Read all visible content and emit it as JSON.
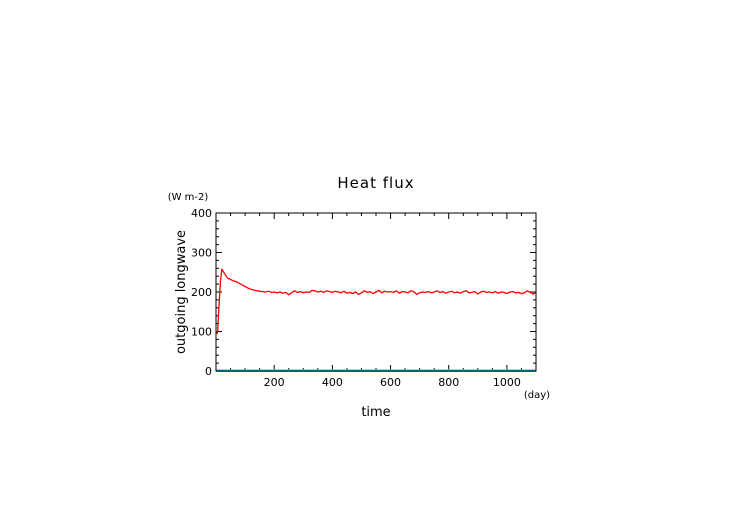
{
  "chart_data": {
    "type": "line",
    "title": "Heat flux",
    "xlabel": "time",
    "ylabel": "outgoing longwave",
    "xunit": "(day)",
    "yunit": "(W m-2)",
    "xlim": [
      0,
      1100
    ],
    "ylim": [
      0,
      400
    ],
    "xticks": [
      200,
      400,
      600,
      800,
      1000
    ],
    "yticks": [
      0,
      100,
      200,
      300,
      400
    ],
    "grid": false,
    "colors": {
      "main": "#ff0000",
      "baseline_a": "#00c8ff",
      "baseline_b": "#7fd03c",
      "baseline_c": "#ffb400"
    },
    "series": [
      {
        "color": "#ff0000",
        "x": [
          0,
          5,
          10,
          15,
          20,
          25,
          30,
          40,
          50,
          60,
          70,
          80,
          90,
          100,
          110,
          120,
          130,
          140,
          150,
          160,
          170,
          180,
          190,
          200,
          210,
          220,
          230,
          240,
          250,
          260,
          270,
          280,
          290,
          300,
          310,
          320,
          330,
          340,
          350,
          360,
          370,
          380,
          390,
          400,
          410,
          420,
          430,
          440,
          450,
          460,
          470,
          480,
          490,
          500,
          510,
          520,
          530,
          540,
          550,
          560,
          570,
          580,
          590,
          600,
          610,
          620,
          630,
          640,
          650,
          660,
          670,
          680,
          690,
          700,
          710,
          720,
          730,
          740,
          750,
          760,
          770,
          780,
          790,
          800,
          810,
          820,
          830,
          840,
          850,
          860,
          870,
          880,
          890,
          900,
          910,
          920,
          930,
          940,
          950,
          960,
          970,
          980,
          990,
          1000,
          1010,
          1020,
          1030,
          1040,
          1050,
          1060,
          1070,
          1080,
          1090,
          1100
        ],
        "y": [
          100,
          95,
          160,
          225,
          258,
          252,
          246,
          235,
          232,
          228,
          226,
          222,
          218,
          214,
          210,
          207,
          205,
          203,
          202,
          201,
          200,
          202,
          199,
          200,
          198,
          200,
          197,
          199,
          193,
          198,
          203,
          199,
          201,
          198,
          200,
          199,
          204,
          203,
          200,
          202,
          199,
          203,
          201,
          199,
          202,
          200,
          198,
          202,
          197,
          199,
          196,
          200,
          194,
          198,
          203,
          199,
          201,
          196,
          200,
          204,
          198,
          202,
          200,
          201,
          199,
          203,
          197,
          201,
          200,
          198,
          203,
          201,
          194,
          198,
          200,
          199,
          201,
          198,
          200,
          203,
          199,
          201,
          197,
          200,
          202,
          198,
          200,
          197,
          201,
          203,
          198,
          199,
          201,
          195,
          200,
          202,
          199,
          200,
          198,
          201,
          197,
          200,
          199,
          196,
          200,
          201,
          198,
          199,
          196,
          198,
          203,
          199,
          195,
          199
        ]
      },
      {
        "color": "#ffb400",
        "x": [
          0,
          1100
        ],
        "y": [
          1.5,
          1.5
        ]
      },
      {
        "color": "#7fd03c",
        "x": [
          0,
          1100
        ],
        "y": [
          0.8,
          0.8
        ]
      },
      {
        "color": "#00c8ff",
        "x": [
          0,
          1100
        ],
        "y": [
          0,
          0
        ]
      }
    ]
  }
}
